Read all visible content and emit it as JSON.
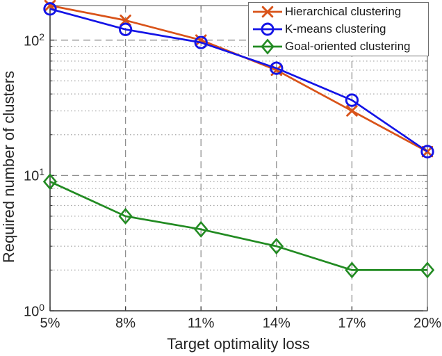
{
  "figure": {
    "xlabel": "Target optimality loss",
    "ylabel": "Required number of clusters"
  },
  "chart_data": {
    "type": "line",
    "title": "",
    "xlabel": "Target optimality loss",
    "ylabel": "Required number of clusters",
    "x_tick_labels": [
      "5%",
      "8%",
      "11%",
      "14%",
      "17%",
      "20%"
    ],
    "x_values": [
      5,
      8,
      11,
      14,
      17,
      20
    ],
    "xlim": [
      5,
      20
    ],
    "y_scale": "log",
    "ylim": [
      1,
      180
    ],
    "y_major_tick_exponents": [
      0,
      1,
      2
    ],
    "grid": {
      "major_style": "dashed",
      "minor_style": "dotted",
      "major_color": "#8f8f8f",
      "minor_color": "#a8a8a8"
    },
    "axis_color": "#3d3d3d",
    "box_color": "#757575",
    "legend_position": "top-right",
    "series": [
      {
        "name": "Hierarchical clustering",
        "color": "#D95319",
        "marker": "x",
        "values": [
          180,
          140,
          100,
          60,
          30,
          15
        ]
      },
      {
        "name": "K-means clustering",
        "color": "#1414E6",
        "marker": "circle",
        "values": [
          170,
          120,
          96,
          62,
          36,
          15
        ]
      },
      {
        "name": "Goal-oriented clustering",
        "color": "#228B22",
        "marker": "diamond",
        "values": [
          9,
          5,
          4,
          3,
          2,
          2
        ]
      }
    ]
  }
}
